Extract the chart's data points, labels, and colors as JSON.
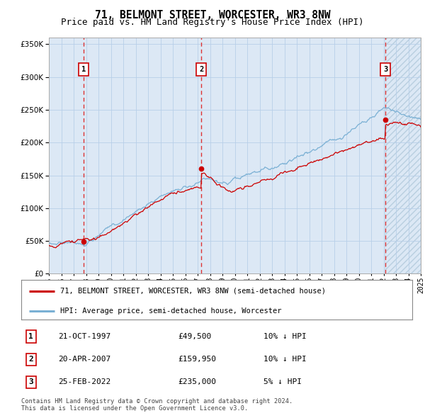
{
  "title": "71, BELMONT STREET, WORCESTER, WR3 8NW",
  "subtitle": "Price paid vs. HM Land Registry's House Price Index (HPI)",
  "ylim": [
    0,
    360000
  ],
  "yticks": [
    0,
    50000,
    100000,
    150000,
    200000,
    250000,
    300000,
    350000
  ],
  "ytick_labels": [
    "£0",
    "£50K",
    "£100K",
    "£150K",
    "£200K",
    "£250K",
    "£300K",
    "£350K"
  ],
  "x_start_year": 1995,
  "x_end_year": 2025,
  "sale_dates": [
    1997.8,
    2007.3,
    2022.15
  ],
  "sale_prices": [
    49500,
    159950,
    235000
  ],
  "sale_labels": [
    "1",
    "2",
    "3"
  ],
  "sale_color": "#cc0000",
  "hpi_line_color": "#7ab0d4",
  "red_line_color": "#cc0000",
  "dashed_line_color": "#dd3333",
  "bg_shading_color": "#dce8f5",
  "hatch_color": "#b8cfe0",
  "legend_line1": "71, BELMONT STREET, WORCESTER, WR3 8NW (semi-detached house)",
  "legend_line2": "HPI: Average price, semi-detached house, Worcester",
  "table_entries": [
    {
      "label": "1",
      "date": "21-OCT-1997",
      "price": "£49,500",
      "hpi": "10% ↓ HPI"
    },
    {
      "label": "2",
      "date": "20-APR-2007",
      "price": "£159,950",
      "hpi": "10% ↓ HPI"
    },
    {
      "label": "3",
      "date": "25-FEB-2022",
      "price": "£235,000",
      "hpi": "5% ↓ HPI"
    }
  ],
  "footer": "Contains HM Land Registry data © Crown copyright and database right 2024.\nThis data is licensed under the Open Government Licence v3.0.",
  "title_fontsize": 10.5,
  "subtitle_fontsize": 9,
  "tick_fontsize": 7.5,
  "label_fontsize": 7.5,
  "background_color": "#ffffff"
}
